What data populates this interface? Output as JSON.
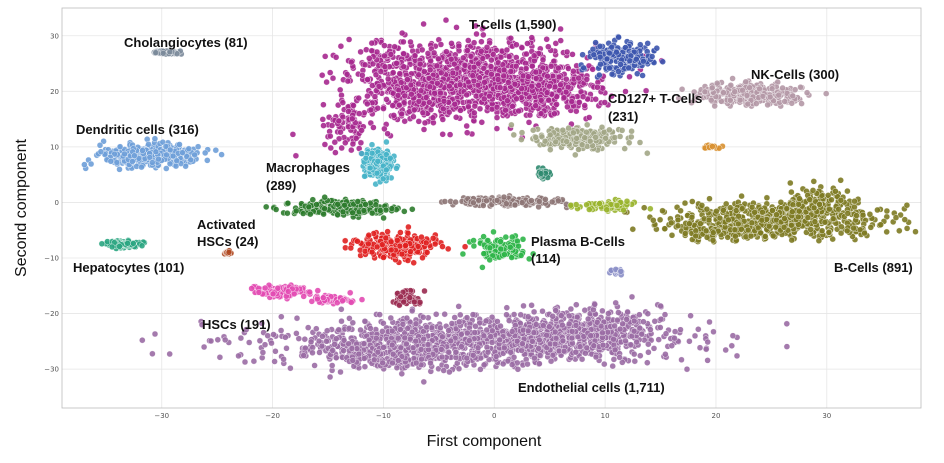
{
  "chart_data": {
    "type": "scatter",
    "title": "",
    "xlabel": "First component",
    "ylabel": "Second component",
    "xlim": [
      -39,
      38.5
    ],
    "ylim": [
      -37,
      35
    ],
    "xticks": [
      -30,
      -20,
      -10,
      0,
      10,
      20,
      30
    ],
    "yticks": [
      -30,
      -20,
      -10,
      0,
      10,
      20,
      30
    ],
    "xtick_labels": [
      "−30",
      "−20",
      "−10",
      "0",
      "10",
      "20",
      "30"
    ],
    "ytick_labels": [
      "−30",
      "−20",
      "−10",
      "0",
      "10",
      "20",
      "30"
    ],
    "grid": true,
    "clusters": [
      {
        "name": "T-Cells (1,590)",
        "color": "#a6288f",
        "n": 1590,
        "blobs": [
          [
            -1,
            23,
            10,
            6.5,
            780
          ],
          [
            -6,
            19,
            7,
            5,
            330
          ],
          [
            4,
            20,
            6,
            5.5,
            320
          ],
          [
            -13,
            14,
            2.5,
            4,
            80
          ],
          [
            -10,
            25,
            4,
            4,
            80
          ]
        ]
      },
      {
        "name": "Endothelial cells (1,711)",
        "color": "#9a6ba4",
        "n": 1711,
        "blobs": [
          [
            -2,
            -25,
            18,
            4.5,
            1100
          ],
          [
            -9,
            -27,
            7,
            3,
            250
          ],
          [
            8,
            -23,
            7,
            4,
            361
          ]
        ]
      },
      {
        "name": "B-Cells (891)",
        "color": "#7d7a22",
        "n": 891,
        "blobs": [
          [
            26,
            -3,
            10,
            3,
            600
          ],
          [
            21,
            -5,
            5,
            1.7,
            180
          ],
          [
            29,
            0,
            3,
            3,
            111
          ]
        ]
      },
      {
        "name": "NK-Cells (300)",
        "color": "#b498a6",
        "n": 300,
        "blobs": [
          [
            23,
            19.5,
            4.5,
            1.8,
            300
          ]
        ]
      },
      {
        "name": "CD127+ T-Cells (231)",
        "color": "#a2a686",
        "n": 231,
        "blobs": [
          [
            7.5,
            11.5,
            4,
            2,
            231
          ]
        ]
      },
      {
        "name": "Dendritic cells (316)",
        "color": "#6e9ed8",
        "n": 316,
        "blobs": [
          [
            -31,
            8.5,
            4.5,
            2,
            316
          ]
        ]
      },
      {
        "name": "Cholangiocytes (81)",
        "color": "#7b8a9a",
        "n": 81,
        "blobs": [
          [
            -29.5,
            27,
            1.2,
            0.35,
            81
          ]
        ]
      },
      {
        "name": "Macrophages (289)",
        "color": "#45b2c8",
        "n": 289,
        "blobs": [
          [
            -10.5,
            7,
            1.2,
            2.5,
            289
          ]
        ]
      },
      {
        "name": "Activated HSCs (24)",
        "color": "#b04820",
        "n": 24,
        "blobs": [
          [
            -24,
            -9,
            0.3,
            0.4,
            24
          ]
        ]
      },
      {
        "name": "Hepatocytes (101)",
        "color": "#2aa581",
        "n": 101,
        "blobs": [
          [
            -33.5,
            -7.5,
            1.5,
            0.6,
            101
          ]
        ]
      },
      {
        "name": "HSCs (191)",
        "color": "#e24bb2",
        "n": 191,
        "blobs": [
          [
            -19.5,
            -16,
            2.5,
            1,
            130
          ],
          [
            -14.5,
            -17.5,
            2,
            0.7,
            61
          ]
        ]
      },
      {
        "name": "Plasma B-Cells (114)",
        "color": "#2eb548",
        "n": 114,
        "blobs": [
          [
            0.5,
            -8.5,
            2.5,
            2,
            114
          ]
        ]
      }
    ],
    "extra_clusters": [
      {
        "name": "Dark-green cells",
        "color": "#2c7b2c",
        "n": 280,
        "blobs": [
          [
            -14,
            -1,
            4.5,
            1.3,
            280
          ]
        ]
      },
      {
        "name": "Red cells",
        "color": "#e02020",
        "n": 250,
        "blobs": [
          [
            -9,
            -8,
            3.5,
            2.2,
            250
          ]
        ]
      },
      {
        "name": "Blue cells",
        "color": "#3c55ae",
        "n": 220,
        "blobs": [
          [
            11.5,
            26,
            3,
            2.5,
            220
          ]
        ]
      },
      {
        "name": "Brown-grey cells",
        "color": "#8d7675",
        "n": 150,
        "blobs": [
          [
            1,
            0.2,
            5,
            0.8,
            150
          ]
        ]
      },
      {
        "name": "Olive-green cells",
        "color": "#99b42c",
        "n": 90,
        "blobs": [
          [
            10,
            -0.5,
            3,
            0.8,
            90
          ]
        ]
      },
      {
        "name": "Dark-red cells",
        "color": "#9a2a50",
        "n": 60,
        "blobs": [
          [
            -8,
            -17,
            1.3,
            1.4,
            60
          ]
        ]
      },
      {
        "name": "Teal cells",
        "color": "#2f8a6f",
        "n": 25,
        "blobs": [
          [
            4.5,
            5,
            0.8,
            0.8,
            25
          ]
        ]
      },
      {
        "name": "Periwinkle cells",
        "color": "#8a8ec6",
        "n": 20,
        "blobs": [
          [
            11,
            -12.5,
            0.6,
            0.5,
            20
          ]
        ]
      },
      {
        "name": "Orange cells",
        "color": "#d89030",
        "n": 18,
        "blobs": [
          [
            19.5,
            10,
            0.7,
            0.3,
            18
          ]
        ]
      }
    ],
    "annotations": [
      {
        "key": "tcells",
        "text": "T-Cells (1,590)"
      },
      {
        "key": "cholangiocytes",
        "text": "Cholangiocytes (81)"
      },
      {
        "key": "nkcells",
        "text": "NK-Cells (300)"
      },
      {
        "key": "cd127_line1",
        "text": "CD127+ T-Cells"
      },
      {
        "key": "cd127_line2",
        "text": "(231)"
      },
      {
        "key": "dendritic",
        "text": "Dendritic cells (316)"
      },
      {
        "key": "macrophages_line1",
        "text": "Macrophages"
      },
      {
        "key": "macrophages_line2",
        "text": "(289)"
      },
      {
        "key": "activated_line1",
        "text": "Activated"
      },
      {
        "key": "activated_line2",
        "text": "HSCs (24)"
      },
      {
        "key": "plasma_line1",
        "text": "Plasma B-Cells"
      },
      {
        "key": "plasma_line2",
        "text": "(114)"
      },
      {
        "key": "hepatocytes",
        "text": "Hepatocytes (101)"
      },
      {
        "key": "bcells",
        "text": "B-Cells (891)"
      },
      {
        "key": "hscs",
        "text": "HSCs (191)"
      },
      {
        "key": "endothelial",
        "text": "Endothelial cells (1,711)"
      }
    ]
  }
}
